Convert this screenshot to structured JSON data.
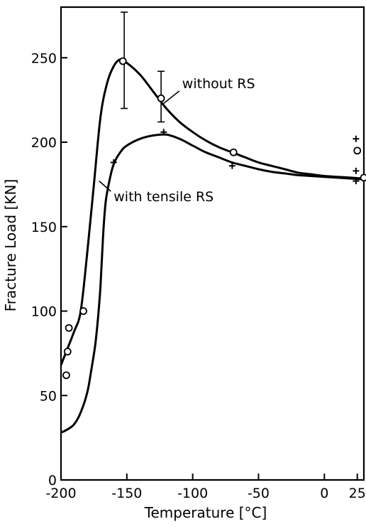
{
  "chart_data": {
    "type": "line",
    "xlabel": "Temperature [°C]",
    "ylabel": "Fracture Load [KN]",
    "xlim": [
      -200,
      30
    ],
    "ylim": [
      0,
      280
    ],
    "x_ticks": [
      -200,
      -150,
      -100,
      -50,
      0,
      25
    ],
    "x_tick_labels": [
      "-200",
      "-150",
      "-100",
      "-50",
      "0",
      "25"
    ],
    "y_ticks": [
      0,
      50,
      100,
      150,
      200,
      250
    ],
    "y_tick_labels": [
      "0",
      "50",
      "100",
      "150",
      "200",
      "250"
    ],
    "grid": false,
    "legend": "none",
    "annotations": [
      {
        "text": "without RS",
        "x": -108,
        "y": 232,
        "target_x": -122,
        "target_y": 223
      },
      {
        "text": "with tensile RS",
        "x": -160,
        "y": 165,
        "target_x": -171,
        "target_y": 177
      }
    ],
    "series": [
      {
        "name": "without RS",
        "curve": [
          {
            "x": -200,
            "y": 68
          },
          {
            "x": -195,
            "y": 78
          },
          {
            "x": -190,
            "y": 88
          },
          {
            "x": -185,
            "y": 100
          },
          {
            "x": -180,
            "y": 135
          },
          {
            "x": -175,
            "y": 175
          },
          {
            "x": -170,
            "y": 215
          },
          {
            "x": -165,
            "y": 235
          },
          {
            "x": -160,
            "y": 245
          },
          {
            "x": -155,
            "y": 249
          },
          {
            "x": -150,
            "y": 247
          },
          {
            "x": -140,
            "y": 240
          },
          {
            "x": -130,
            "y": 230
          },
          {
            "x": -120,
            "y": 220
          },
          {
            "x": -110,
            "y": 212
          },
          {
            "x": -100,
            "y": 206
          },
          {
            "x": -90,
            "y": 201
          },
          {
            "x": -80,
            "y": 197
          },
          {
            "x": -70,
            "y": 194
          },
          {
            "x": -60,
            "y": 191
          },
          {
            "x": -50,
            "y": 188
          },
          {
            "x": -40,
            "y": 186
          },
          {
            "x": -30,
            "y": 184
          },
          {
            "x": -20,
            "y": 182
          },
          {
            "x": -10,
            "y": 181
          },
          {
            "x": 0,
            "y": 180
          },
          {
            "x": 10,
            "y": 179.5
          },
          {
            "x": 20,
            "y": 179
          },
          {
            "x": 30,
            "y": 178.5
          }
        ],
        "markers": "circle",
        "points": [
          {
            "x": -196,
            "y": 62
          },
          {
            "x": -195,
            "y": 76
          },
          {
            "x": -194,
            "y": 90
          },
          {
            "x": -183,
            "y": 100
          },
          {
            "x": -153,
            "y": 248
          },
          {
            "x": -124,
            "y": 226
          },
          {
            "x": -69,
            "y": 194
          },
          {
            "x": 25,
            "y": 195
          },
          {
            "x": 30,
            "y": 179
          }
        ],
        "error_bars": [
          {
            "x": -152,
            "low": 220,
            "high": 277
          },
          {
            "x": -124,
            "low": 212,
            "high": 242
          }
        ]
      },
      {
        "name": "with tensile RS",
        "curve": [
          {
            "x": -200,
            "y": 28
          },
          {
            "x": -195,
            "y": 30
          },
          {
            "x": -190,
            "y": 33
          },
          {
            "x": -185,
            "y": 40
          },
          {
            "x": -180,
            "y": 52
          },
          {
            "x": -177,
            "y": 65
          },
          {
            "x": -174,
            "y": 80
          },
          {
            "x": -172,
            "y": 95
          },
          {
            "x": -170,
            "y": 115
          },
          {
            "x": -168,
            "y": 145
          },
          {
            "x": -166,
            "y": 165
          },
          {
            "x": -163,
            "y": 178
          },
          {
            "x": -160,
            "y": 187
          },
          {
            "x": -155,
            "y": 194
          },
          {
            "x": -150,
            "y": 198
          },
          {
            "x": -140,
            "y": 202
          },
          {
            "x": -130,
            "y": 204
          },
          {
            "x": -120,
            "y": 204.5
          },
          {
            "x": -110,
            "y": 202
          },
          {
            "x": -100,
            "y": 198
          },
          {
            "x": -90,
            "y": 194
          },
          {
            "x": -80,
            "y": 191
          },
          {
            "x": -70,
            "y": 188
          },
          {
            "x": -60,
            "y": 186
          },
          {
            "x": -50,
            "y": 184
          },
          {
            "x": -40,
            "y": 182.5
          },
          {
            "x": -30,
            "y": 181.5
          },
          {
            "x": -20,
            "y": 180.5
          },
          {
            "x": -10,
            "y": 180
          },
          {
            "x": 0,
            "y": 179.5
          },
          {
            "x": 10,
            "y": 179
          },
          {
            "x": 20,
            "y": 178.5
          },
          {
            "x": 30,
            "y": 178
          }
        ],
        "markers": "plus",
        "points": [
          {
            "x": -160,
            "y": 188
          },
          {
            "x": -122,
            "y": 206
          },
          {
            "x": -70,
            "y": 186
          },
          {
            "x": 24,
            "y": 202
          },
          {
            "x": 24,
            "y": 183
          },
          {
            "x": 24,
            "y": 177
          }
        ]
      }
    ]
  }
}
